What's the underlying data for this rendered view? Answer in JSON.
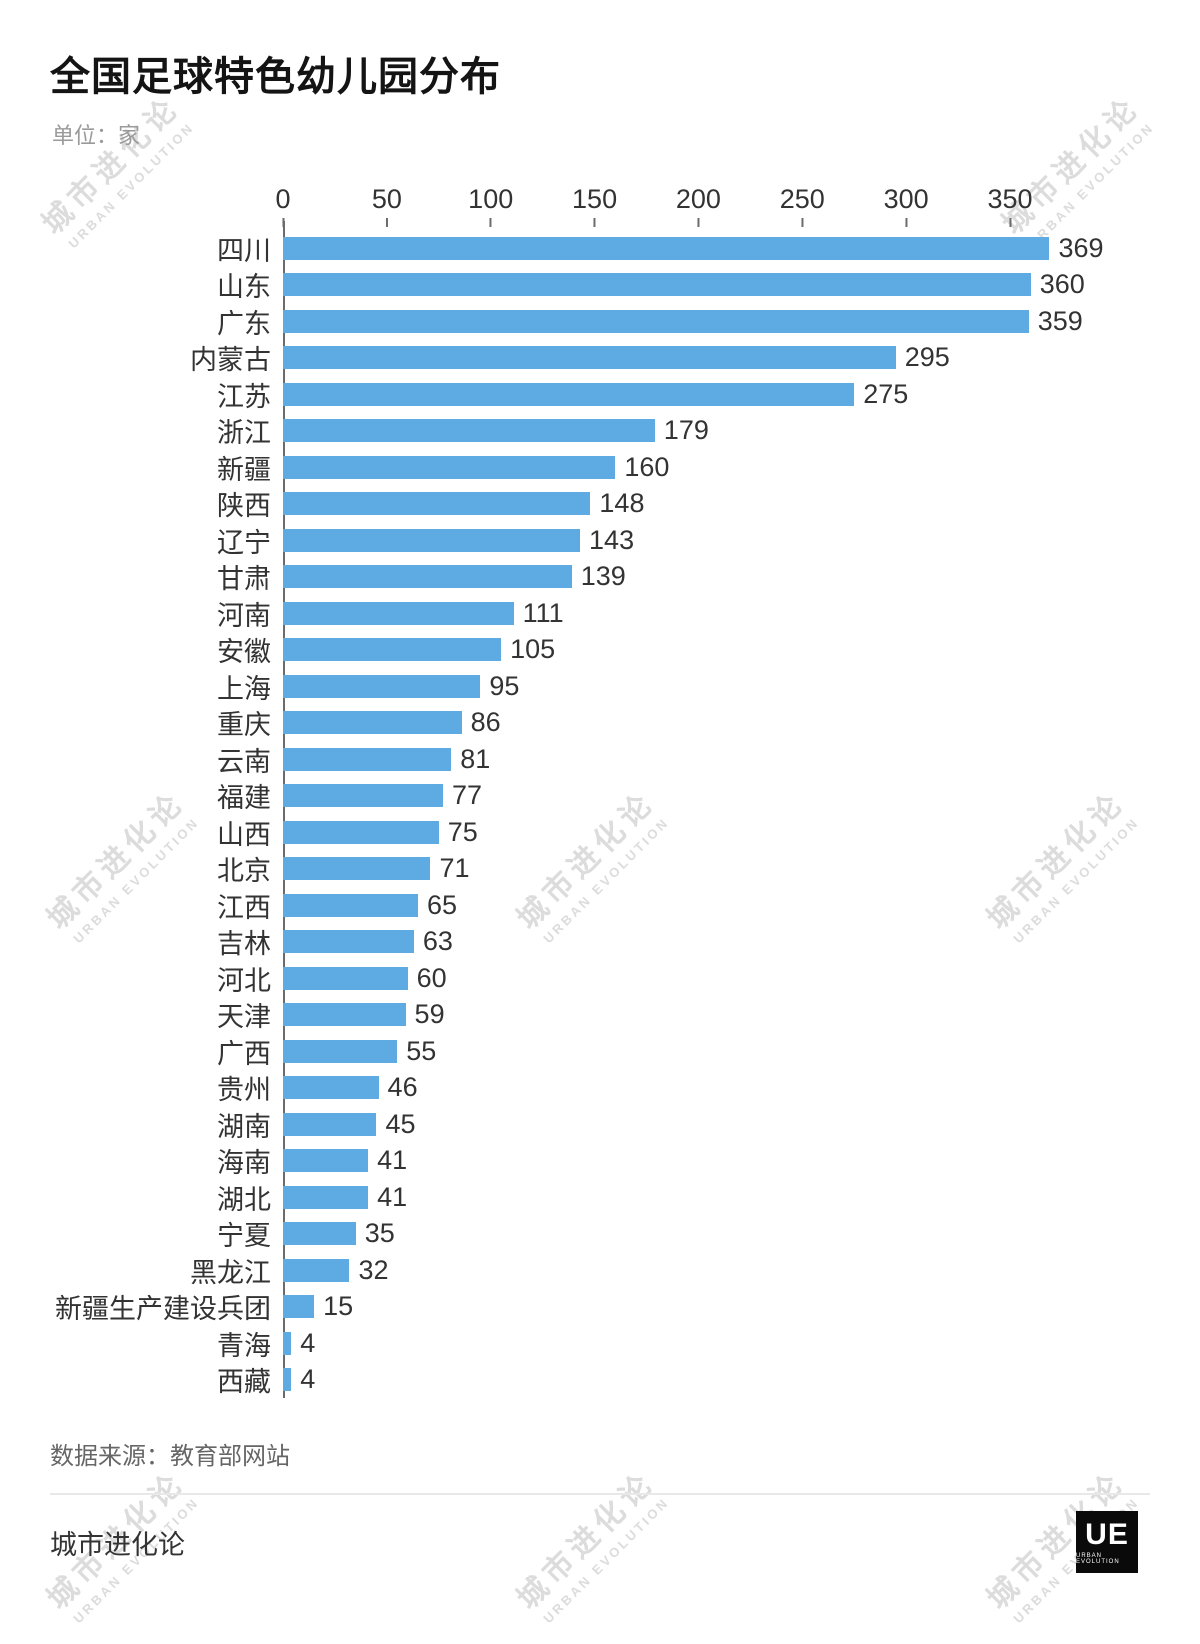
{
  "header": {
    "title": "全国足球特色幼儿园分布",
    "unit": "单位：家"
  },
  "watermark": {
    "line1": "城市进化论",
    "line2": "URBAN EVOLUTION"
  },
  "chart_data": {
    "type": "bar",
    "orientation": "horizontal",
    "title": "全国足球特色幼儿园分布",
    "unit": "家",
    "xlim": [
      0,
      390
    ],
    "ticks": [
      0,
      50,
      100,
      150,
      200,
      250,
      300,
      350
    ],
    "grid": false,
    "legend": false,
    "bar_color": "#5EABE4",
    "categories": [
      "四川",
      "山东",
      "广东",
      "内蒙古",
      "江苏",
      "浙江",
      "新疆",
      "陕西",
      "辽宁",
      "甘肃",
      "河南",
      "安徽",
      "上海",
      "重庆",
      "云南",
      "福建",
      "山西",
      "北京",
      "江西",
      "吉林",
      "河北",
      "天津",
      "广西",
      "贵州",
      "湖南",
      "海南",
      "湖北",
      "宁夏",
      "黑龙江",
      "新疆生产建设兵团",
      "青海",
      "西藏"
    ],
    "values": [
      369,
      360,
      359,
      295,
      275,
      179,
      160,
      148,
      143,
      139,
      111,
      105,
      95,
      86,
      81,
      77,
      75,
      71,
      65,
      63,
      60,
      59,
      55,
      46,
      45,
      41,
      41,
      35,
      32,
      15,
      4,
      4
    ]
  },
  "footer": {
    "source": "数据来源：教育部网站",
    "brand": "城市进化论",
    "logo_main": "UE",
    "logo_sub": "URBAN EVOLUTION"
  }
}
